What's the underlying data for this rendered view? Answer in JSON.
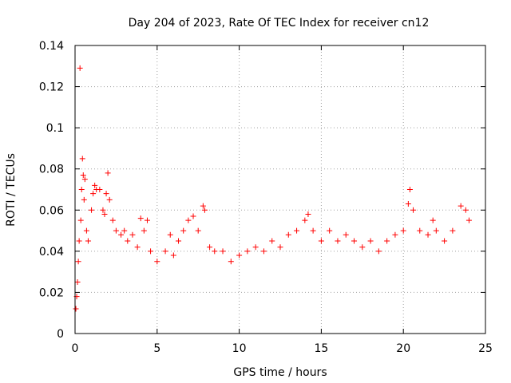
{
  "chart_data": {
    "type": "scatter",
    "title": "Day 204 of 2023, Rate Of TEC Index for receiver cn12",
    "xlabel": "GPS time / hours",
    "ylabel": "ROTI / TECUs",
    "xlim": [
      0,
      25
    ],
    "ylim": [
      0,
      0.14
    ],
    "xticks": [
      0,
      5,
      10,
      15,
      20,
      25
    ],
    "xtick_labels": [
      "0",
      "5",
      "10",
      "15",
      "20",
      "25"
    ],
    "yticks": [
      0,
      0.02,
      0.04,
      0.06,
      0.08,
      0.1,
      0.12,
      0.14
    ],
    "ytick_labels": [
      "0",
      "0.02",
      "0.04",
      "0.06",
      "0.08",
      "0.1",
      "0.12",
      "0.14"
    ],
    "grid": true,
    "marker": "plus",
    "colors": {
      "series": "#ff0000",
      "grid": "#a0a0a0",
      "axes": "#000000"
    },
    "series": [
      {
        "points": [
          [
            0.05,
            0.012
          ],
          [
            0.1,
            0.018
          ],
          [
            0.15,
            0.025
          ],
          [
            0.2,
            0.035
          ],
          [
            0.25,
            0.045
          ],
          [
            0.3,
            0.129
          ],
          [
            0.35,
            0.055
          ],
          [
            0.4,
            0.07
          ],
          [
            0.45,
            0.085
          ],
          [
            0.5,
            0.077
          ],
          [
            0.55,
            0.065
          ],
          [
            0.6,
            0.075
          ],
          [
            0.7,
            0.05
          ],
          [
            0.8,
            0.045
          ],
          [
            1.0,
            0.06
          ],
          [
            1.1,
            0.068
          ],
          [
            1.2,
            0.072
          ],
          [
            1.3,
            0.07
          ],
          [
            1.5,
            0.07
          ],
          [
            1.7,
            0.06
          ],
          [
            1.8,
            0.058
          ],
          [
            1.9,
            0.068
          ],
          [
            2.0,
            0.078
          ],
          [
            2.1,
            0.065
          ],
          [
            2.3,
            0.055
          ],
          [
            2.5,
            0.05
          ],
          [
            2.8,
            0.048
          ],
          [
            3.0,
            0.05
          ],
          [
            3.2,
            0.045
          ],
          [
            3.5,
            0.048
          ],
          [
            3.8,
            0.042
          ],
          [
            4.0,
            0.056
          ],
          [
            4.2,
            0.05
          ],
          [
            4.4,
            0.055
          ],
          [
            4.6,
            0.04
          ],
          [
            5.0,
            0.035
          ],
          [
            5.5,
            0.04
          ],
          [
            5.8,
            0.048
          ],
          [
            6.0,
            0.038
          ],
          [
            6.3,
            0.045
          ],
          [
            6.6,
            0.05
          ],
          [
            6.9,
            0.055
          ],
          [
            7.2,
            0.057
          ],
          [
            7.5,
            0.05
          ],
          [
            7.8,
            0.062
          ],
          [
            7.9,
            0.06
          ],
          [
            8.2,
            0.042
          ],
          [
            8.5,
            0.04
          ],
          [
            9.0,
            0.04
          ],
          [
            9.5,
            0.035
          ],
          [
            10.0,
            0.038
          ],
          [
            10.5,
            0.04
          ],
          [
            11.0,
            0.042
          ],
          [
            11.5,
            0.04
          ],
          [
            12.0,
            0.045
          ],
          [
            12.5,
            0.042
          ],
          [
            13.0,
            0.048
          ],
          [
            13.5,
            0.05
          ],
          [
            14.0,
            0.055
          ],
          [
            14.2,
            0.058
          ],
          [
            14.5,
            0.05
          ],
          [
            15.0,
            0.045
          ],
          [
            15.5,
            0.05
          ],
          [
            16.0,
            0.045
          ],
          [
            16.5,
            0.048
          ],
          [
            17.0,
            0.045
          ],
          [
            17.5,
            0.042
          ],
          [
            18.0,
            0.045
          ],
          [
            18.5,
            0.04
          ],
          [
            19.0,
            0.045
          ],
          [
            19.5,
            0.048
          ],
          [
            20.0,
            0.05
          ],
          [
            20.3,
            0.063
          ],
          [
            20.4,
            0.07
          ],
          [
            20.6,
            0.06
          ],
          [
            21.0,
            0.05
          ],
          [
            21.5,
            0.048
          ],
          [
            21.8,
            0.055
          ],
          [
            22.0,
            0.05
          ],
          [
            22.5,
            0.045
          ],
          [
            23.0,
            0.05
          ],
          [
            23.5,
            0.062
          ],
          [
            23.8,
            0.06
          ],
          [
            24.0,
            0.055
          ]
        ]
      }
    ]
  }
}
